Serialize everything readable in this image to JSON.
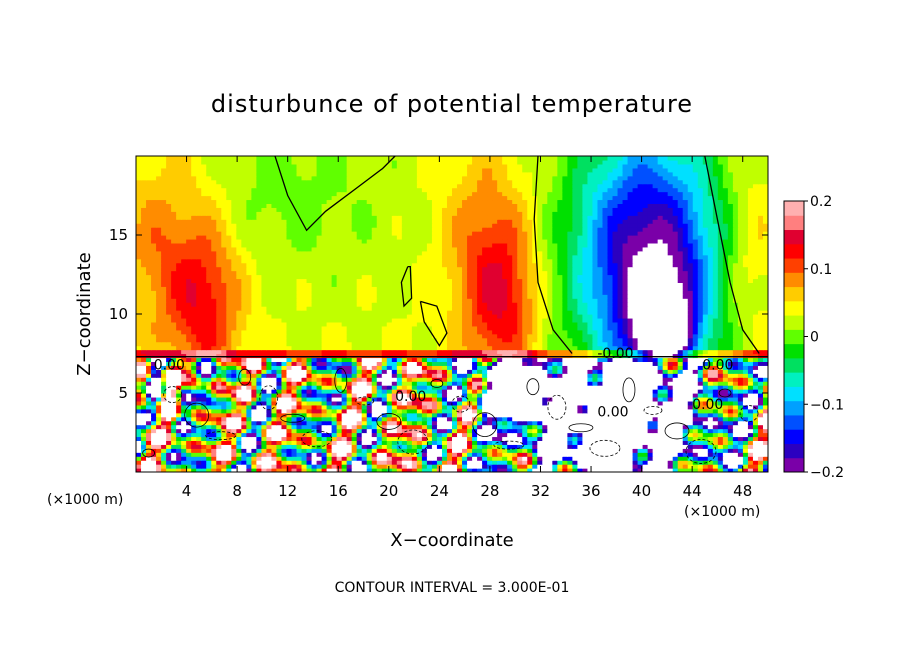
{
  "chart_data": {
    "type": "heatmap",
    "title": "disturbunce of potential temperature",
    "xlabel": "X−coordinate",
    "ylabel": "Z−coordinate",
    "x_unit_label": "(×1000 m)",
    "y_unit_label": "(×1000 m)",
    "xlim": [
      0,
      50
    ],
    "ylim": [
      0,
      20
    ],
    "x_ticks": [
      4,
      8,
      12,
      16,
      20,
      24,
      28,
      32,
      36,
      40,
      44,
      48
    ],
    "y_ticks": [
      5,
      10,
      15
    ],
    "colorbar": {
      "range": [
        -0.2,
        0.2
      ],
      "ticks": [
        0.2,
        0.1,
        0,
        -0.1,
        -0.2
      ],
      "tick_labels": [
        "0.2",
        "0.1",
        "0",
        "−0.1",
        "−0.2"
      ],
      "colors": [
        "#7a00a8",
        "#2b00c0",
        "#0000ff",
        "#0050ff",
        "#00a0ff",
        "#00e0ff",
        "#00f0c0",
        "#00e060",
        "#00e000",
        "#60ff00",
        "#c0ff00",
        "#ffff00",
        "#ffcc00",
        "#ff8c00",
        "#ff4000",
        "#ff0000",
        "#e00030",
        "#ff7f7f",
        "#ffb0b0"
      ]
    },
    "contour_interval_text": "CONTOUR INTERVAL = 3.000E-01",
    "contour_labels": [
      {
        "text": "0.00",
        "x": 1.4,
        "y": 6.5
      },
      {
        "text": "0.00",
        "x": 20.5,
        "y": 4.5
      },
      {
        "text": "0.00",
        "x": 36.5,
        "y": 3.5
      },
      {
        "text": "0.00",
        "x": 44.0,
        "y": 4.0
      },
      {
        "text": "0.00",
        "x": 44.8,
        "y": 6.5
      },
      {
        "text": "-0.00",
        "x": 36.5,
        "y": 7.2
      }
    ]
  }
}
